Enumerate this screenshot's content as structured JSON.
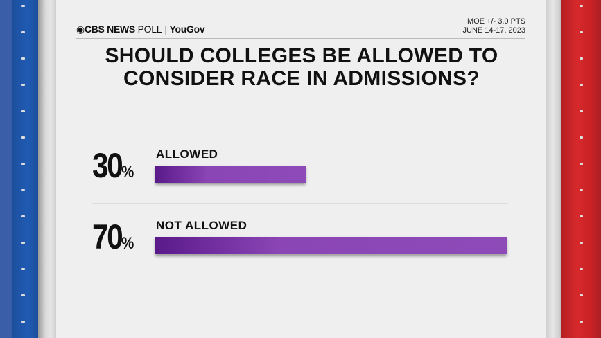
{
  "header": {
    "brand": "CBS NEWS",
    "poll": "POLL",
    "partner": "YouGov",
    "moe": "MOE +/- 3.0 PTS",
    "dates": "JUNE 14-17, 2023"
  },
  "colors": {
    "bar": "#8d4bb8",
    "bar_dark": "#5a1a8a",
    "left_strip": "#1f5bb3",
    "right_strip": "#d6292c"
  },
  "chart_data": {
    "type": "bar",
    "orientation": "horizontal",
    "title": "SHOULD COLLEGES BE ALLOWED TO CONSIDER RACE IN ADMISSIONS?",
    "categories": [
      "ALLOWED",
      "NOT ALLOWED"
    ],
    "values": [
      30,
      70
    ],
    "value_labels": [
      "30",
      "70"
    ],
    "unit": "%",
    "xlim": [
      0,
      100
    ]
  }
}
